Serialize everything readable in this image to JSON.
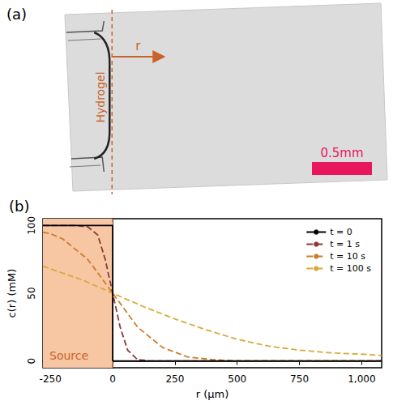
{
  "panel_a": {
    "label": "(a)",
    "region": "Hydrogel",
    "axis": "r",
    "scale_bar": "0.5mm"
  },
  "chart_data": {
    "type": "line",
    "label": "(b)",
    "x_label": "r (μm)",
    "y_label": "c(r) (mM)",
    "xlim": [
      -280,
      1080
    ],
    "xticks": [
      -250,
      0,
      250,
      500,
      750,
      1000
    ],
    "ylim": [
      -5,
      105
    ],
    "yticks": [
      0,
      50,
      100
    ],
    "grid": false,
    "legend": "top-right",
    "source": {
      "label": "Source",
      "range": [
        -280,
        0
      ],
      "color": "#f7c6a3"
    },
    "series": [
      {
        "name": "t = 0",
        "color": "#000000",
        "line_style": "solid",
        "x": [
          -280,
          0,
          0,
          1080
        ],
        "values": [
          100,
          100,
          0,
          0
        ]
      },
      {
        "name": "t = 1 s",
        "color": "#8c3a3a",
        "line_style": "dashed",
        "x": [
          -280,
          -150,
          -100,
          -60,
          -30,
          0,
          30,
          60,
          100,
          150,
          1080
        ],
        "values": [
          100,
          100,
          99,
          93,
          75,
          50,
          25,
          8,
          1,
          0,
          0
        ]
      },
      {
        "name": "t = 10 s",
        "color": "#c8802a",
        "line_style": "dashed",
        "x": [
          -280,
          -250,
          -200,
          -100,
          0,
          100,
          200,
          300,
          400,
          500,
          1080
        ],
        "values": [
          95,
          94,
          90,
          75,
          50,
          25,
          10,
          3,
          1,
          0,
          0
        ]
      },
      {
        "name": "t = 100 s",
        "color": "#d8aa3a",
        "line_style": "dashed",
        "x": [
          -280,
          -250,
          -125,
          0,
          125,
          250,
          375,
          500,
          625,
          750,
          875,
          1000,
          1080
        ],
        "values": [
          70,
          68,
          60,
          50,
          40,
          31,
          23,
          16,
          11,
          8,
          6,
          5,
          4
        ]
      }
    ]
  }
}
